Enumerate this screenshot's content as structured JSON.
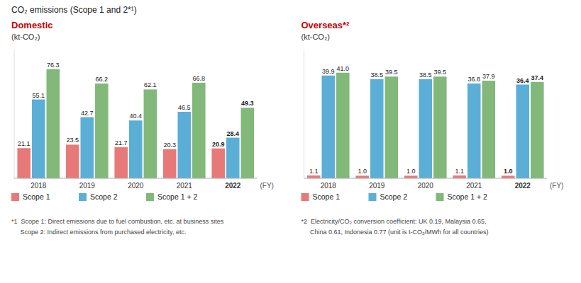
{
  "title": "CO₂ emissions (Scope 1 and 2*¹)",
  "chart_data": [
    {
      "type": "bar",
      "title": "Domestic",
      "ylabel": "(kt-CO₂)",
      "xlabel": "(FY)",
      "categories": [
        "2018",
        "2019",
        "2020",
        "2021",
        "2022"
      ],
      "series": [
        {
          "name": "Scope 1",
          "color": "#E87979",
          "values": [
            21.1,
            23.5,
            21.7,
            20.3,
            20.9
          ],
          "value_labels": [
            "21.1",
            "23.5",
            "21.7",
            "20.3",
            "20.9"
          ]
        },
        {
          "name": "Scope 2",
          "color": "#5BAFD6",
          "values": [
            55.1,
            42.7,
            40.4,
            46.5,
            28.4
          ],
          "value_labels": [
            "55.1",
            "42.7",
            "40.4",
            "46.5",
            "28.4"
          ]
        },
        {
          "name": "Scope 1 + 2",
          "color": "#82B87A",
          "values": [
            76.3,
            66.2,
            62.1,
            66.8,
            49.3
          ],
          "value_labels": [
            "76.3",
            "66.2",
            "62.1",
            "66.8",
            "49.3"
          ]
        }
      ],
      "ylim": [
        0,
        90
      ],
      "data_labels": true,
      "tick_labels": "x",
      "grid": false,
      "legend": "bottom",
      "annotations": [
        "*1  Scope 1: Direct emissions due to fuel combustion, etc. at business sites",
        "     Scope 2: Indirect emissions from purchased electricity, etc."
      ]
    },
    {
      "type": "bar",
      "title": "Overseas*²",
      "ylabel": "(kt-CO₂)",
      "xlabel": "(FY)",
      "categories": [
        "2018",
        "2019",
        "2020",
        "2021",
        "2022"
      ],
      "series": [
        {
          "name": "Scope 1",
          "color": "#E87979",
          "values": [
            1.1,
            1.0,
            1.0,
            1.1,
            1.0
          ],
          "value_labels": [
            "1.1",
            "1.0",
            "1.0",
            "1.1",
            "1.0"
          ]
        },
        {
          "name": "Scope 2",
          "color": "#5BAFD6",
          "values": [
            39.9,
            38.5,
            38.5,
            36.8,
            36.4
          ],
          "value_labels": [
            "39.9",
            "38.5",
            "38.5",
            "36.8",
            "36.4"
          ]
        },
        {
          "name": "Scope 1 + 2",
          "color": "#82B87A",
          "values": [
            41.0,
            39.5,
            39.5,
            37.9,
            37.4
          ],
          "value_labels": [
            "41.0",
            "39.5",
            "39.5",
            "37.9",
            "37.4"
          ]
        }
      ],
      "ylim": [
        0,
        50
      ],
      "data_labels": true,
      "tick_labels": "x",
      "grid": false,
      "legend": "bottom",
      "annotations": [
        "*2  Electricity/CO₂ conversion coefficient: UK 0.19, Malaysia 0.65,",
        "     China 0.61, Indonesia 0.77 (unit is t-CO₂/MWh for all countries)"
      ]
    }
  ]
}
